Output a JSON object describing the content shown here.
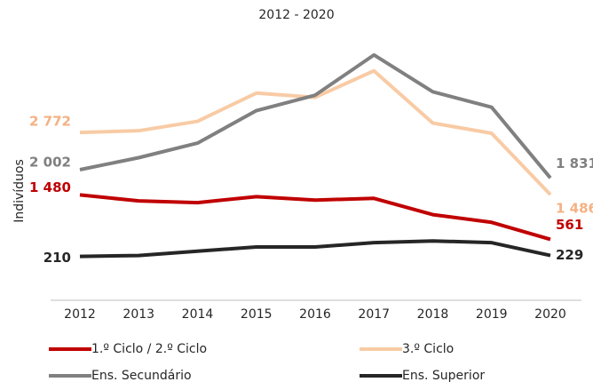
{
  "chart_data": {
    "type": "line",
    "title": "2012 - 2020",
    "y_label": "Indivíduos",
    "categories": [
      "2012",
      "2013",
      "2014",
      "2015",
      "2016",
      "2017",
      "2018",
      "2019",
      "2020"
    ],
    "ylim": [
      0,
      4500
    ],
    "series": [
      {
        "name": "1.º Ciclo / 2.º Ciclo",
        "color": "#c00000",
        "values": [
          1480,
          1356,
          1321,
          1445,
          1374,
          1409,
          1073,
          913,
          561
        ],
        "value_labels": [
          "1 480",
          null,
          null,
          null,
          null,
          null,
          null,
          null,
          "561"
        ]
      },
      {
        "name": "3.º Ciclo",
        "color": "#f8cba5",
        "values": [
          2772,
          2807,
          3002,
          3586,
          3497,
          4046,
          2966,
          2755,
          1486
        ],
        "value_labels": [
          "2 772",
          null,
          null,
          null,
          null,
          null,
          null,
          null,
          "1 486"
        ]
      },
      {
        "name": "Ens. Secundário",
        "color": "#808080",
        "values": [
          2002,
          2250,
          2551,
          3223,
          3542,
          4374,
          3613,
          3294,
          1831
        ],
        "value_labels": [
          "2 002",
          null,
          null,
          null,
          null,
          null,
          null,
          null,
          "1 831"
        ]
      },
      {
        "name": "Ens. Superior",
        "color": "#262626",
        "values": [
          210,
          228,
          316,
          405,
          405,
          493,
          529,
          493,
          229
        ],
        "value_labels": [
          "210",
          null,
          null,
          null,
          null,
          null,
          null,
          null,
          "229"
        ]
      }
    ]
  }
}
